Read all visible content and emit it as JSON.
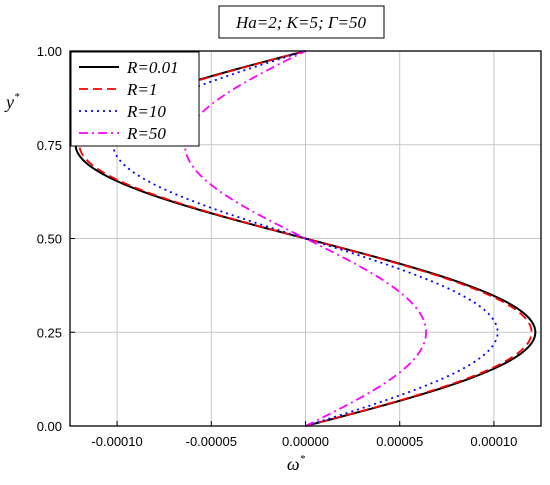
{
  "chart_data": {
    "type": "line",
    "title": "Ha=2; K=5; Γ=50",
    "xlabel": "ω",
    "xlabel_sup": "*",
    "ylabel": "y",
    "ylabel_sup": "*",
    "xlim": [
      -0.000125,
      0.000125
    ],
    "ylim": [
      0,
      1
    ],
    "xticks": [
      -0.0001,
      -5e-05,
      0,
      5e-05,
      0.0001
    ],
    "xtick_labels": [
      "-0.00010",
      "-0.00005",
      "0.00000",
      "0.00005",
      "0.00010"
    ],
    "yticks": [
      0,
      0.25,
      0.5,
      0.75,
      1
    ],
    "ytick_labels": [
      "0.00",
      "0.25",
      "0.50",
      "0.75",
      "1.00"
    ],
    "grid": true,
    "legend_position": "top-left",
    "series": [
      {
        "name": "R=0.01",
        "color": "#000000",
        "dash": "solid",
        "amplitude": 0.000122
      },
      {
        "name": "R=1",
        "color": "#ff0000",
        "dash": "dashed",
        "amplitude": 0.00012
      },
      {
        "name": "R=10",
        "color": "#0000ff",
        "dash": "dotted",
        "amplitude": 0.000102
      },
      {
        "name": "R=50",
        "color": "#ff00ff",
        "dash": "dashdot",
        "amplitude": 6.4e-05
      }
    ]
  }
}
